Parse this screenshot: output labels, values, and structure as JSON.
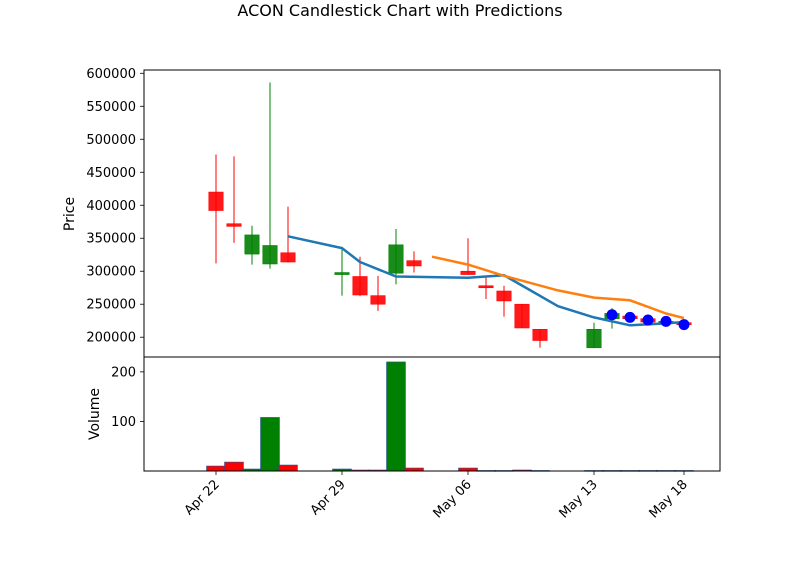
{
  "chart_data": {
    "type": "candlestick",
    "title": "ACON Candlestick Chart with Predictions",
    "price_panel": {
      "ylabel": "Price",
      "ylim": [
        170000,
        605000
      ],
      "yticks": [
        200000,
        250000,
        300000,
        350000,
        400000,
        450000,
        500000,
        550000,
        600000
      ],
      "ytick_labels": [
        "200000",
        "250000",
        "300000",
        "350000",
        "400000",
        "450000",
        "500000",
        "550000",
        "600000"
      ]
    },
    "volume_panel": {
      "ylabel": "Volume",
      "ylim": [
        0,
        230
      ],
      "yticks": [
        100,
        200
      ],
      "ytick_labels": [
        "100",
        "200"
      ]
    },
    "xaxis": {
      "range": [
        "2024-04-18",
        "2024-05-20"
      ],
      "ticks": [
        "2024-04-22",
        "2024-04-29",
        "2024-05-06",
        "2024-05-13",
        "2024-05-18"
      ],
      "tick_labels": [
        "Apr 22",
        "Apr 29",
        "May 06",
        "May 13",
        "May 18"
      ]
    },
    "candles": [
      {
        "date": "2024-04-22",
        "open": 420000,
        "high": 477000,
        "low": 312000,
        "close": 392000,
        "volume": 10
      },
      {
        "date": "2024-04-23",
        "open": 372000,
        "high": 474000,
        "low": 343000,
        "close": 368000,
        "volume": 18
      },
      {
        "date": "2024-04-24",
        "open": 326000,
        "high": 369000,
        "low": 310000,
        "close": 355000,
        "volume": 4
      },
      {
        "date": "2024-04-25",
        "open": 311000,
        "high": 586000,
        "low": 304000,
        "close": 339000,
        "volume": 108
      },
      {
        "date": "2024-04-26",
        "open": 328000,
        "high": 398000,
        "low": 313000,
        "close": 314000,
        "volume": 12
      },
      {
        "date": "2024-04-29",
        "open": 296000,
        "high": 337000,
        "low": 263000,
        "close": 298000,
        "volume": 4
      },
      {
        "date": "2024-04-30",
        "open": 292000,
        "high": 322000,
        "low": 262000,
        "close": 264000,
        "volume": 2
      },
      {
        "date": "2024-05-01",
        "open": 263000,
        "high": 293000,
        "low": 240000,
        "close": 250000,
        "volume": 2
      },
      {
        "date": "2024-05-02",
        "open": 297000,
        "high": 364000,
        "low": 280000,
        "close": 340000,
        "volume": 220
      },
      {
        "date": "2024-05-03",
        "open": 316000,
        "high": 330000,
        "low": 298000,
        "close": 308000,
        "volume": 6
      },
      {
        "date": "2024-05-06",
        "open": 300000,
        "high": 350000,
        "low": 295000,
        "close": 295000,
        "volume": 6
      },
      {
        "date": "2024-05-07",
        "open": 278000,
        "high": 292000,
        "low": 258000,
        "close": 276000,
        "volume": 1
      },
      {
        "date": "2024-05-08",
        "open": 270000,
        "high": 278000,
        "low": 231000,
        "close": 255000,
        "volume": 1
      },
      {
        "date": "2024-05-09",
        "open": 250000,
        "high": 250000,
        "low": 214000,
        "close": 214000,
        "volume": 2
      },
      {
        "date": "2024-05-10",
        "open": 212000,
        "high": 212000,
        "low": 184000,
        "close": 195000,
        "volume": 1
      },
      {
        "date": "2024-05-13",
        "open": 184000,
        "high": 222000,
        "low": 184000,
        "close": 212000,
        "volume": 1
      },
      {
        "date": "2024-05-14",
        "open": 228000,
        "high": 244000,
        "low": 213000,
        "close": 236000,
        "volume": 1
      },
      {
        "date": "2024-05-15",
        "open": 232000,
        "high": 235000,
        "low": 228000,
        "close": 228000,
        "volume": 1
      },
      {
        "date": "2024-05-16",
        "open": 228000,
        "high": 230000,
        "low": 221000,
        "close": 223000,
        "volume": 1
      },
      {
        "date": "2024-05-17",
        "open": 224000,
        "high": 227000,
        "low": 222000,
        "close": 224000,
        "volume": 1
      },
      {
        "date": "2024-05-18",
        "open": 222000,
        "high": 224000,
        "low": 214000,
        "close": 219000,
        "volume": 1
      }
    ],
    "prediction_points": [
      {
        "date": "2024-05-14",
        "value": 234000
      },
      {
        "date": "2024-05-15",
        "value": 230000
      },
      {
        "date": "2024-05-16",
        "value": 226000
      },
      {
        "date": "2024-05-17",
        "value": 224000
      },
      {
        "date": "2024-05-18",
        "value": 219000
      }
    ],
    "series": [
      {
        "color": "#1f77b4",
        "points": [
          [
            "2024-04-26",
            353000
          ],
          [
            "2024-04-29",
            335000
          ],
          [
            "2024-04-30",
            314000
          ],
          [
            "2024-05-02",
            292000
          ],
          [
            "2024-05-06",
            290000
          ],
          [
            "2024-05-08",
            294000
          ],
          [
            "2024-05-11",
            247000
          ],
          [
            "2024-05-13",
            230000
          ],
          [
            "2024-05-15",
            218000
          ],
          [
            "2024-05-17",
            221000
          ],
          [
            "2024-05-18",
            223000
          ]
        ]
      },
      {
        "color": "#ff7f0e",
        "points": [
          [
            "2024-05-04",
            322000
          ],
          [
            "2024-05-06",
            310000
          ],
          [
            "2024-05-08",
            293000
          ],
          [
            "2024-05-11",
            271000
          ],
          [
            "2024-05-13",
            260000
          ],
          [
            "2024-05-15",
            256000
          ],
          [
            "2024-05-17",
            236000
          ],
          [
            "2024-05-18",
            229000
          ]
        ]
      }
    ],
    "colors": {
      "up": "#008000",
      "down": "#ff0000",
      "prediction_marker": "#0000ff"
    },
    "grid": false
  }
}
